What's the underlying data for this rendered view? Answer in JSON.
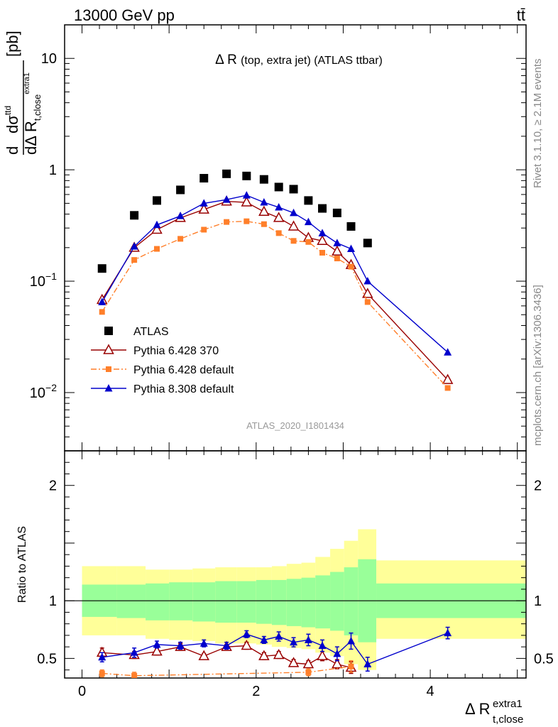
{
  "header": {
    "left": "13000 GeV pp",
    "right": "tt̄"
  },
  "side_texts": {
    "rivet": "Rivet 3.1.10, ≥ 2.1M events",
    "mcplots": "mcplots.cern.ch [arXiv:1306.3436]"
  },
  "chart_data": [
    {
      "type": "scatter",
      "panel": "main",
      "title": "Δ R (top, extra jet) (ATLAS ttbar)",
      "ylabel": "dσ/dΔR [pb]",
      "analysis_tag": "ATLAS_2020_I1801434",
      "yscale": "log",
      "ylim": [
        0.003,
        20
      ],
      "xlim": [
        -0.2,
        5.1
      ],
      "y_ticks": [
        {
          "v": 0.01,
          "base": "10",
          "exp": "−2"
        },
        {
          "v": 0.1,
          "base": "10",
          "exp": "−1"
        },
        {
          "v": 1,
          "label": "1"
        },
        {
          "v": 10,
          "label": "10"
        }
      ],
      "legend": {
        "position": "lower-left"
      },
      "series": [
        {
          "name": "ATLAS",
          "color": "#000000",
          "marker": "square",
          "line": "none",
          "x": [
            0.23,
            0.6,
            0.86,
            1.13,
            1.4,
            1.66,
            1.89,
            2.09,
            2.26,
            2.43,
            2.6,
            2.76,
            2.93,
            3.09,
            3.28
          ],
          "y": [
            0.13,
            0.39,
            0.53,
            0.66,
            0.84,
            0.92,
            0.88,
            0.82,
            0.7,
            0.67,
            0.53,
            0.45,
            0.41,
            0.31,
            0.22
          ]
        },
        {
          "name": "Pythia 6.428 370",
          "color": "#990000",
          "marker": "triangle-open",
          "line": "solid",
          "x": [
            0.23,
            0.6,
            0.86,
            1.13,
            1.4,
            1.66,
            1.89,
            2.09,
            2.26,
            2.43,
            2.6,
            2.76,
            2.93,
            3.09,
            3.28,
            4.2
          ],
          "y": [
            0.068,
            0.2,
            0.29,
            0.37,
            0.44,
            0.52,
            0.51,
            0.42,
            0.37,
            0.31,
            0.245,
            0.23,
            0.185,
            0.14,
            0.077,
            0.013
          ]
        },
        {
          "name": "Pythia 6.428 default",
          "color": "#ff7f2a",
          "marker": "square-small",
          "line": "dashdot",
          "x": [
            0.23,
            0.6,
            0.86,
            1.13,
            1.4,
            1.66,
            1.89,
            2.09,
            2.26,
            2.43,
            2.6,
            2.76,
            2.93,
            3.09,
            3.28,
            4.2
          ],
          "y": [
            0.053,
            0.155,
            0.195,
            0.24,
            0.29,
            0.34,
            0.345,
            0.325,
            0.27,
            0.23,
            0.225,
            0.18,
            0.16,
            0.135,
            0.065,
            0.011
          ]
        },
        {
          "name": "Pythia 8.308 default",
          "color": "#0000cc",
          "marker": "triangle-filled",
          "line": "solid",
          "x": [
            0.23,
            0.6,
            0.86,
            1.13,
            1.4,
            1.66,
            1.89,
            2.09,
            2.26,
            2.43,
            2.6,
            2.76,
            2.93,
            3.09,
            3.28,
            4.2
          ],
          "y": [
            0.065,
            0.205,
            0.32,
            0.385,
            0.5,
            0.54,
            0.59,
            0.51,
            0.46,
            0.41,
            0.34,
            0.27,
            0.22,
            0.195,
            0.1,
            0.023
          ]
        }
      ]
    },
    {
      "type": "scatter",
      "panel": "ratio",
      "ylabel": "Ratio to ATLAS",
      "ylim": [
        0.33,
        2.3
      ],
      "xlim": [
        -0.2,
        5.1
      ],
      "xlabel": "Δ R",
      "xlabel_sup": "extra1",
      "xlabel_sub": "t,close",
      "x_ticks": [
        0,
        2,
        4
      ],
      "y_ticks": [
        0.5,
        1,
        2
      ],
      "bands": {
        "edges": [
          0,
          0.4,
          0.73,
          1,
          1.27,
          1.53,
          1.78,
          2,
          2.18,
          2.35,
          2.52,
          2.68,
          2.85,
          3.01,
          3.17,
          3.38,
          5.1
        ],
        "yellow_lo": [
          0.7,
          0.7,
          0.67,
          0.66,
          0.65,
          0.63,
          0.63,
          0.62,
          0.6,
          0.59,
          0.58,
          0.55,
          0.52,
          0.45,
          0.4,
          0.67
        ],
        "yellow_hi": [
          1.3,
          1.3,
          1.27,
          1.27,
          1.28,
          1.29,
          1.29,
          1.29,
          1.3,
          1.32,
          1.33,
          1.38,
          1.45,
          1.52,
          1.62,
          1.35
        ],
        "green_lo": [
          0.86,
          0.85,
          0.83,
          0.83,
          0.82,
          0.81,
          0.81,
          0.8,
          0.79,
          0.78,
          0.77,
          0.76,
          0.74,
          0.7,
          0.64,
          0.85
        ],
        "green_hi": [
          1.14,
          1.14,
          1.15,
          1.16,
          1.16,
          1.17,
          1.17,
          1.18,
          1.18,
          1.19,
          1.2,
          1.22,
          1.25,
          1.29,
          1.36,
          1.15
        ]
      },
      "series": [
        {
          "name": "Pythia 6.428 370",
          "color": "#990000",
          "x": [
            0.23,
            0.6,
            0.86,
            1.13,
            1.4,
            1.66,
            1.89,
            2.09,
            2.26,
            2.43,
            2.6,
            2.76,
            2.93,
            3.09
          ],
          "y": [
            0.55,
            0.53,
            0.56,
            0.6,
            0.52,
            0.6,
            0.61,
            0.52,
            0.53,
            0.46,
            0.45,
            0.52,
            0.45,
            0.42
          ],
          "err": [
            0.04,
            0.03,
            0.03,
            0.03,
            0.02,
            0.02,
            0.03,
            0.03,
            0.03,
            0.03,
            0.03,
            0.04,
            0.04,
            0.05
          ]
        },
        {
          "name": "Pythia 6.428 default",
          "color": "#ff7f2a",
          "x": [
            0.23,
            0.6,
            2.6,
            3.09
          ],
          "y": [
            0.37,
            0.35,
            0.38,
            0.43
          ],
          "err": [
            0.03,
            0.03,
            0.03,
            0.05
          ]
        },
        {
          "name": "Pythia 8.308 default",
          "color": "#0000cc",
          "x": [
            0.23,
            0.6,
            0.86,
            1.13,
            1.4,
            1.66,
            1.89,
            2.09,
            2.26,
            2.43,
            2.6,
            2.76,
            2.93,
            3.09,
            3.28,
            4.2
          ],
          "y": [
            0.51,
            0.55,
            0.62,
            0.61,
            0.63,
            0.61,
            0.71,
            0.66,
            0.69,
            0.64,
            0.66,
            0.61,
            0.54,
            0.65,
            0.45,
            0.72
          ],
          "err": [
            0.04,
            0.04,
            0.03,
            0.03,
            0.03,
            0.03,
            0.03,
            0.03,
            0.04,
            0.04,
            0.05,
            0.05,
            0.06,
            0.07,
            0.06,
            0.05
          ]
        }
      ]
    }
  ]
}
